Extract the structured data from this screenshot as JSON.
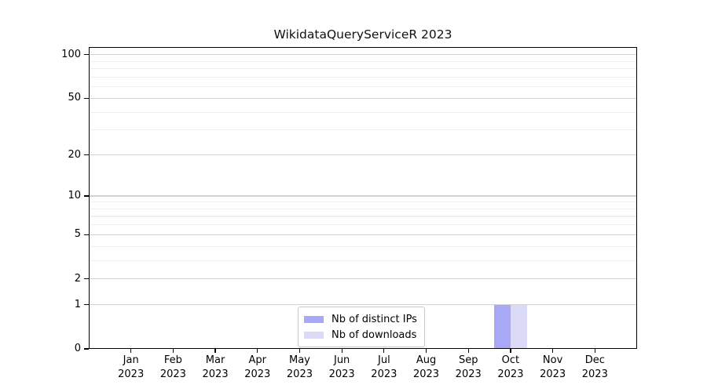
{
  "figure": {
    "background": "#ffffff"
  },
  "chart_data": {
    "type": "bar",
    "title": "WikidataQueryServiceR 2023",
    "categories": [
      {
        "month": "Jan",
        "year": "2023"
      },
      {
        "month": "Feb",
        "year": "2023"
      },
      {
        "month": "Mar",
        "year": "2023"
      },
      {
        "month": "Apr",
        "year": "2023"
      },
      {
        "month": "May",
        "year": "2023"
      },
      {
        "month": "Jun",
        "year": "2023"
      },
      {
        "month": "Jul",
        "year": "2023"
      },
      {
        "month": "Aug",
        "year": "2023"
      },
      {
        "month": "Sep",
        "year": "2023"
      },
      {
        "month": "Oct",
        "year": "2023"
      },
      {
        "month": "Nov",
        "year": "2023"
      },
      {
        "month": "Dec",
        "year": "2023"
      }
    ],
    "series": [
      {
        "name": "Nb of distinct IPs",
        "color": "#a8a8f7",
        "values": [
          0,
          0,
          0,
          0,
          0,
          0,
          0,
          0,
          0,
          1,
          0,
          0
        ]
      },
      {
        "name": "Nb of downloads",
        "color": "#dbdbf7",
        "values": [
          0,
          0,
          0,
          0,
          0,
          0,
          0,
          0,
          0,
          1,
          0,
          0
        ]
      }
    ],
    "xlabel": "",
    "ylabel": "",
    "yscale": "log1p",
    "ylim": [
      0,
      113
    ],
    "yticks": [
      0,
      1,
      2,
      5,
      10,
      20,
      50,
      100
    ],
    "y_minor_ticks": [
      3,
      4,
      6,
      7,
      8,
      9,
      30,
      40,
      60,
      70,
      80,
      90
    ],
    "grid": "both",
    "legend_position": "lower center"
  },
  "colors": {
    "grid_major": "#d2d2d2",
    "grid_minor": "#efefef",
    "spine": "#000000",
    "text": "#000000",
    "legend_border": "#c9c9c9",
    "legend_bg": "#ffffff"
  }
}
